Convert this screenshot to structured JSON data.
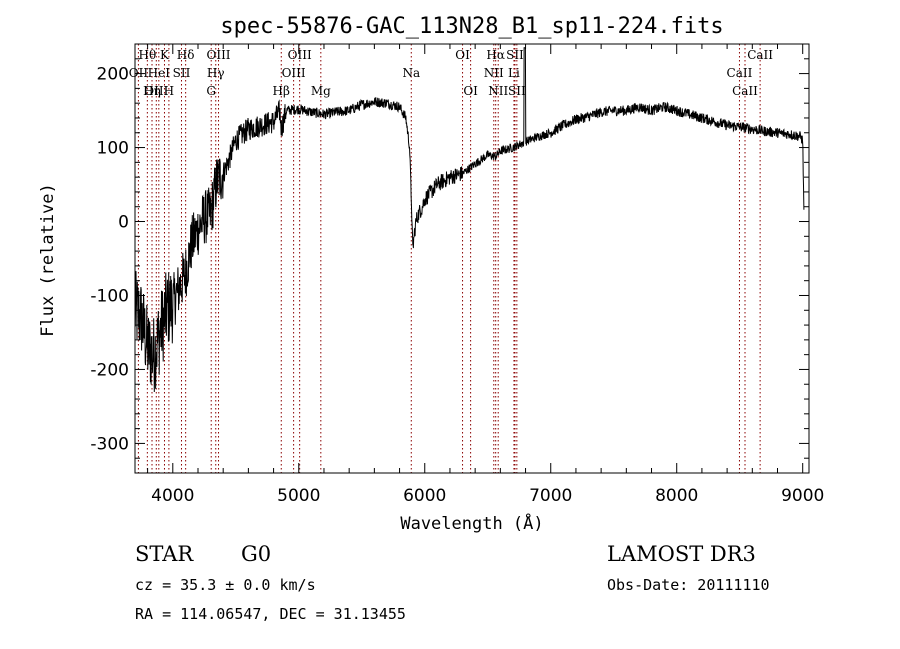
{
  "chart_data": {
    "type": "line",
    "title": "spec-55876-GAC_113N28_B1_sp11-224.fits",
    "xlabel": "Wavelength (Å)",
    "ylabel": "Flux (relative)",
    "xlim": [
      3700,
      9050
    ],
    "ylim": [
      -340,
      240
    ],
    "x_ticks": [
      4000,
      5000,
      6000,
      7000,
      8000,
      9000
    ],
    "y_ticks": [
      -300,
      -200,
      -100,
      0,
      100,
      200
    ],
    "grid": false,
    "spectrum_knots": {
      "x": [
        3700,
        3750,
        3800,
        3850,
        3900,
        3950,
        4000,
        4050,
        4100,
        4150,
        4200,
        4250,
        4300,
        4350,
        4400,
        4450,
        4500,
        4600,
        4700,
        4800,
        4850,
        4861,
        4900,
        5000,
        5100,
        5200,
        5300,
        5400,
        5500,
        5600,
        5700,
        5800,
        5850,
        5880,
        5895,
        5905,
        5915,
        5930,
        5950,
        5980,
        6000,
        6050,
        6100,
        6200,
        6300,
        6400,
        6500,
        6563,
        6600,
        6700,
        6800,
        6900,
        7000,
        7100,
        7200,
        7300,
        7400,
        7500,
        7600,
        7700,
        7800,
        7900,
        8000,
        8100,
        8200,
        8300,
        8400,
        8500,
        8600,
        8700,
        8800,
        8900,
        8980,
        9000,
        9010
      ],
      "y": [
        -120,
        -130,
        -170,
        -180,
        -150,
        -120,
        -110,
        -90,
        -70,
        -30,
        -10,
        5,
        10,
        55,
        65,
        85,
        110,
        125,
        130,
        135,
        150,
        125,
        150,
        152,
        148,
        145,
        148,
        150,
        158,
        162,
        160,
        155,
        140,
        100,
        20,
        -40,
        -20,
        0,
        10,
        20,
        30,
        40,
        50,
        60,
        65,
        78,
        90,
        88,
        95,
        100,
        108,
        115,
        120,
        130,
        138,
        142,
        148,
        150,
        150,
        155,
        150,
        155,
        150,
        145,
        140,
        135,
        130,
        128,
        125,
        122,
        120,
        118,
        115,
        110,
        10
      ]
    },
    "spectral_lines": [
      {
        "name": "Hθ",
        "wavelength": 3798,
        "row": 0
      },
      {
        "name": "OII",
        "wavelength": 3727,
        "row": 1
      },
      {
        "name": "OIII",
        "wavelength": 3869,
        "row": 2
      },
      {
        "name": "K",
        "wavelength": 3934,
        "row": 0
      },
      {
        "name": "Hη",
        "wavelength": 3835,
        "row": 2
      },
      {
        "name": "HeI",
        "wavelength": 3889,
        "row": 1
      },
      {
        "name": "H",
        "wavelength": 3969,
        "row": 2
      },
      {
        "name": "SII",
        "wavelength": 4069,
        "row": 1
      },
      {
        "name": "Hδ",
        "wavelength": 4102,
        "row": 0
      },
      {
        "name": "OIII",
        "wavelength": 4363,
        "row": 0
      },
      {
        "name": "Hγ",
        "wavelength": 4341,
        "row": 1
      },
      {
        "name": "G",
        "wavelength": 4305,
        "row": 2
      },
      {
        "name": "Hβ",
        "wavelength": 4861,
        "row": 2
      },
      {
        "name": "OIII",
        "wavelength": 5007,
        "row": 0
      },
      {
        "name": "OIII",
        "wavelength": 4959,
        "row": 1
      },
      {
        "name": "Mg",
        "wavelength": 5175,
        "row": 2
      },
      {
        "name": "Na",
        "wavelength": 5893,
        "row": 1
      },
      {
        "name": "OI",
        "wavelength": 6300,
        "row": 0
      },
      {
        "name": "OI",
        "wavelength": 6364,
        "row": 2
      },
      {
        "name": "Hα",
        "wavelength": 6563,
        "row": 0
      },
      {
        "name": "NII",
        "wavelength": 6548,
        "row": 1
      },
      {
        "name": "NII",
        "wavelength": 6583,
        "row": 2
      },
      {
        "name": "SII",
        "wavelength": 6716,
        "row": 0
      },
      {
        "name": "Li",
        "wavelength": 6708,
        "row": 1
      },
      {
        "name": "SII",
        "wavelength": 6731,
        "row": 2
      },
      {
        "name": "CaII",
        "wavelength": 8662,
        "row": 0
      },
      {
        "name": "CaII",
        "wavelength": 8498,
        "row": 1
      },
      {
        "name": "CaII",
        "wavelength": 8542,
        "row": 2
      }
    ]
  },
  "info": {
    "class_text": "STAR",
    "subclass_text": "G0",
    "survey_text": "LAMOST DR3",
    "cz_text": "cz = 35.3 ± 0.0 km/s",
    "obs_date_text": "Obs-Date: 20111110",
    "radec_text": "RA = 114.06547, DEC =  31.13455"
  },
  "colors": {
    "spectrum": "#000000",
    "line_marker": "#8b0000",
    "axis": "#000000"
  }
}
